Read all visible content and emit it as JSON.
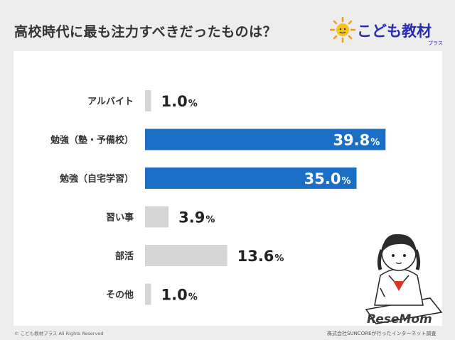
{
  "header": {
    "title": "高校時代に最も注力すべきだったものは？",
    "logo_text": "こども教材",
    "logo_sub": "プラス"
  },
  "chart_data": {
    "type": "bar",
    "orientation": "horizontal",
    "title": "高校時代に最も注力すべきだったものは？",
    "categories": [
      "アルバイト",
      "勉強（塾・予備校）",
      "勉強（自宅学習）",
      "習い事",
      "部活",
      "その他"
    ],
    "values": [
      1.0,
      39.8,
      35.0,
      3.9,
      13.6,
      1.0
    ],
    "value_labels": [
      "1.0",
      "39.8",
      "35.0",
      "3.9",
      "13.6",
      "1.0"
    ],
    "unit": "%",
    "highlight": [
      false,
      true,
      true,
      false,
      false,
      false
    ],
    "colors": {
      "highlight": "#1a6fc4",
      "normal": "#d6d6d6",
      "inside_text": "#ffffff",
      "outside_text": "#222222"
    },
    "xlim": [
      0,
      40
    ],
    "grid": false,
    "legend": "none"
  },
  "watermark": "ReseMom",
  "footer": {
    "copyright": "© こども教材プラス All Rights Reserved",
    "source": "株式会社SUNCOREが行ったインターネット調査"
  }
}
